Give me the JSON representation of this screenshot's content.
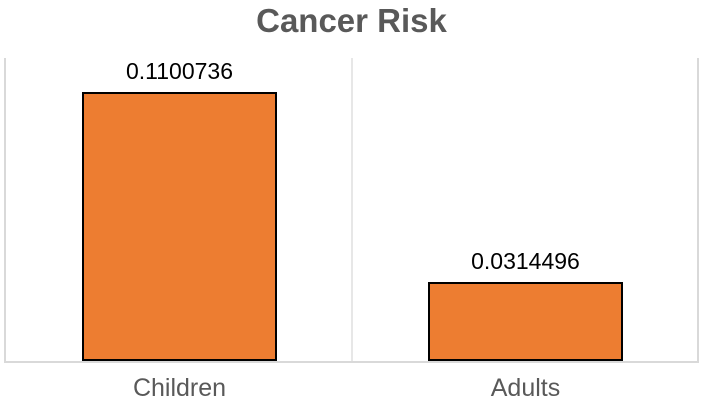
{
  "chart_data": {
    "type": "bar",
    "title": "Cancer Risk",
    "categories": [
      "Children",
      "Adults"
    ],
    "values": [
      0.1100736,
      0.0314496
    ],
    "data_labels": [
      "0.1100736",
      "0.0314496"
    ],
    "xlabel": "",
    "ylabel": "",
    "ylim": [
      0,
      0.12
    ],
    "legend_position": "none",
    "grid": "vertical-category-boundaries",
    "colors": {
      "bar_fill": "#ED7D31",
      "bar_border": "#000000",
      "title_color": "#595959",
      "data_label_color": "#000000",
      "category_label_color": "#595959",
      "gridline_color": "#D9D9D9"
    }
  }
}
